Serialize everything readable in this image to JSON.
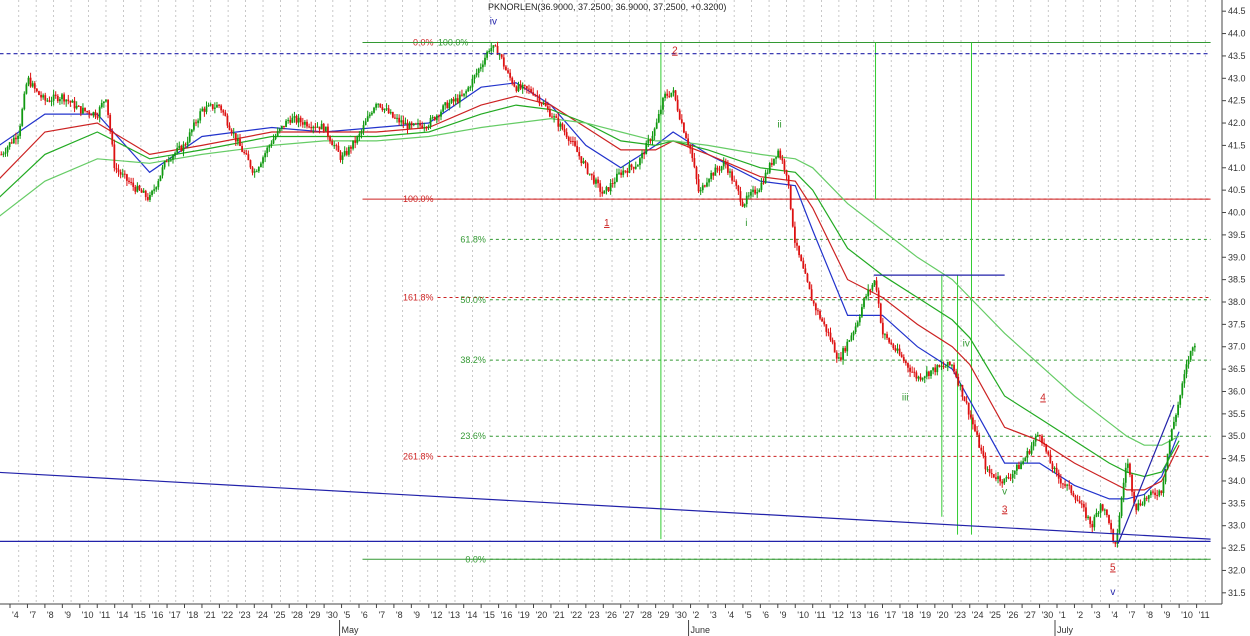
{
  "chart_data": {
    "type": "candlestick",
    "title": "PKNORLEN(36.9000, 37.2500, 36.9000, 37.2500, +0.3200)",
    "ylim": [
      31.25,
      44.75
    ],
    "y_ticks": [
      "31.5",
      "32.0",
      "32.5",
      "33.0",
      "33.5",
      "34.0",
      "34.5",
      "35.0",
      "35.5",
      "36.0",
      "36.5",
      "37.0",
      "37.5",
      "38.0",
      "38.5",
      "39.0",
      "39.5",
      "40.0",
      "40.5",
      "41.0",
      "41.5",
      "42.0",
      "42.5",
      "43.0",
      "43.5",
      "44.0",
      "44.5"
    ],
    "x_tick_labels": [
      "4",
      "7",
      "8",
      "9",
      "10",
      "11",
      "14",
      "15",
      "16",
      "17",
      "18",
      "21",
      "22",
      "23",
      "24",
      "25",
      "28",
      "29",
      "30",
      "5",
      "6",
      "7",
      "8",
      "9",
      "12",
      "13",
      "14",
      "15",
      "16",
      "19",
      "20",
      "21",
      "22",
      "23",
      "26",
      "27",
      "28",
      "29",
      "30",
      "2",
      "3",
      "4",
      "5",
      "6",
      "9",
      "10",
      "11",
      "12",
      "13",
      "16",
      "17",
      "18",
      "19",
      "20",
      "23",
      "24",
      "25",
      "26",
      "27",
      "30",
      "1",
      "2",
      "3",
      "4",
      "7",
      "8",
      "9",
      "10",
      "11"
    ],
    "month_labels": [
      {
        "label": "May",
        "tick_index": 19
      },
      {
        "label": "June",
        "tick_index": 39
      },
      {
        "label": "July",
        "tick_index": 60
      }
    ],
    "fib_levels": [
      {
        "label": "0.0%",
        "value": 43.8,
        "color": "#cc2222",
        "x_range": [
          24.5,
          68.8
        ]
      },
      {
        "label": "100.0%",
        "value": 43.8,
        "color": "#339933",
        "x_range": [
          26.5,
          68.8
        ]
      },
      {
        "label": "100.0%",
        "value": 40.3,
        "color": "#cc2222",
        "x_range": [
          24.5,
          68.8
        ]
      },
      {
        "label": "61.8%",
        "value": 39.4,
        "color": "#339933",
        "x_range": [
          27.5,
          68.8
        ]
      },
      {
        "label": "161.8%",
        "value": 38.1,
        "color": "#cc2222",
        "x_range": [
          24.5,
          68.8
        ]
      },
      {
        "label": "50.0%",
        "value": 38.05,
        "color": "#339933",
        "x_range": [
          27.5,
          68.8
        ]
      },
      {
        "label": "38.2%",
        "value": 36.7,
        "color": "#339933",
        "x_range": [
          27.5,
          68.8
        ]
      },
      {
        "label": "23.6%",
        "value": 35.0,
        "color": "#339933",
        "x_range": [
          27.5,
          68.8
        ]
      },
      {
        "label": "261.8%",
        "value": 34.55,
        "color": "#cc2222",
        "x_range": [
          24.5,
          68.8
        ]
      },
      {
        "label": "0.0%",
        "value": 32.25,
        "color": "#339933",
        "x_range": [
          27.5,
          68.8
        ]
      }
    ],
    "wave_labels": [
      {
        "text": "iv",
        "x": 27.7,
        "y": 44.2,
        "color": "#2222aa"
      },
      {
        "text": "2",
        "x": 38.1,
        "y": 43.55,
        "color": "#cc2222"
      },
      {
        "text": "1",
        "x": 34.2,
        "y": 39.7,
        "color": "#cc2222"
      },
      {
        "text": "ii",
        "x": 44.1,
        "y": 41.9,
        "color": "#339933"
      },
      {
        "text": "i",
        "x": 42.2,
        "y": 39.7,
        "color": "#339933"
      },
      {
        "text": "iii",
        "x": 51.3,
        "y": 35.8,
        "color": "#339933"
      },
      {
        "text": "iv",
        "x": 54.8,
        "y": 37.0,
        "color": "#339933"
      },
      {
        "text": "v",
        "x": 57.0,
        "y": 33.7,
        "color": "#339933"
      },
      {
        "text": "3",
        "x": 57.0,
        "y": 33.3,
        "color": "#cc2222"
      },
      {
        "text": "4",
        "x": 59.2,
        "y": 35.8,
        "color": "#cc2222"
      },
      {
        "text": "5",
        "x": 63.2,
        "y": 32.0,
        "color": "#cc2222"
      },
      {
        "text": "v",
        "x": 63.2,
        "y": 31.45,
        "color": "#2222aa"
      }
    ],
    "trendlines": [
      {
        "points": [
          [
            -1,
            34.2
          ],
          [
            68.8,
            32.7
          ]
        ],
        "color": "#2222aa"
      },
      {
        "points": [
          [
            -1,
            32.65
          ],
          [
            68.8,
            32.65
          ]
        ],
        "color": "#2222aa"
      },
      {
        "points": [
          [
            -1,
            43.55
          ],
          [
            68.8,
            43.55
          ]
        ],
        "color": "#2222aa",
        "dashed": true
      },
      {
        "points": [
          [
            49.5,
            38.6
          ],
          [
            57.0,
            38.6
          ]
        ],
        "color": "#2222aa"
      },
      {
        "points": [
          [
            63.5,
            32.6
          ],
          [
            66.7,
            35.7
          ]
        ],
        "color": "#2222aa"
      }
    ],
    "vertical_lines": [
      {
        "x": 37.3,
        "y_range": [
          32.7,
          43.8
        ],
        "color": "#33cc33"
      },
      {
        "x": 49.6,
        "y_range": [
          40.3,
          43.8
        ],
        "color": "#33cc33"
      },
      {
        "x": 55.1,
        "y_range": [
          32.8,
          43.8
        ],
        "color": "#33cc33"
      },
      {
        "x": 53.4,
        "y_range": [
          33.2,
          38.6
        ],
        "color": "#33cc33"
      },
      {
        "x": 54.3,
        "y_range": [
          32.8,
          38.6
        ],
        "color": "#33cc33"
      }
    ],
    "price_path": [
      [
        -0.5,
        41.3
      ],
      [
        0.5,
        41.8
      ],
      [
        1.0,
        43.0
      ],
      [
        1.5,
        42.7
      ],
      [
        2.0,
        42.5
      ],
      [
        3.0,
        42.6
      ],
      [
        4.0,
        42.3
      ],
      [
        5.0,
        42.2
      ],
      [
        5.5,
        42.6
      ],
      [
        6.0,
        41.0
      ],
      [
        7.0,
        40.6
      ],
      [
        8.0,
        40.3
      ],
      [
        9.0,
        41.2
      ],
      [
        10.0,
        41.5
      ],
      [
        11.0,
        42.3
      ],
      [
        12.0,
        42.4
      ],
      [
        13.0,
        41.6
      ],
      [
        14.0,
        40.9
      ],
      [
        15.0,
        41.6
      ],
      [
        16.0,
        42.1
      ],
      [
        17.0,
        42.0
      ],
      [
        18.0,
        41.9
      ],
      [
        19.0,
        41.2
      ],
      [
        20.0,
        41.7
      ],
      [
        21.0,
        42.5
      ],
      [
        22.0,
        42.1
      ],
      [
        23.0,
        41.9
      ],
      [
        24.0,
        42.0
      ],
      [
        25.0,
        42.4
      ],
      [
        26.0,
        42.6
      ],
      [
        27.0,
        43.3
      ],
      [
        27.5,
        43.7
      ],
      [
        28.0,
        43.6
      ],
      [
        28.5,
        43.1
      ],
      [
        29.0,
        42.8
      ],
      [
        30.0,
        42.7
      ],
      [
        31.0,
        42.2
      ],
      [
        32.0,
        41.7
      ],
      [
        33.0,
        41.0
      ],
      [
        34.0,
        40.4
      ],
      [
        35.0,
        40.9
      ],
      [
        36.0,
        41.1
      ],
      [
        37.0,
        41.9
      ],
      [
        37.5,
        42.6
      ],
      [
        38.0,
        42.7
      ],
      [
        38.5,
        42.0
      ],
      [
        39.0,
        41.4
      ],
      [
        39.5,
        40.4
      ],
      [
        40.0,
        40.8
      ],
      [
        41.0,
        41.1
      ],
      [
        42.0,
        40.2
      ],
      [
        43.0,
        40.6
      ],
      [
        44.0,
        41.4
      ],
      [
        44.5,
        40.9
      ],
      [
        45.0,
        39.3
      ],
      [
        46.0,
        38.0
      ],
      [
        47.0,
        37.2
      ],
      [
        47.5,
        36.7
      ],
      [
        48.5,
        37.5
      ],
      [
        49.0,
        38.1
      ],
      [
        49.6,
        38.5
      ],
      [
        50.0,
        37.3
      ],
      [
        51.0,
        36.8
      ],
      [
        52.0,
        36.3
      ],
      [
        53.0,
        36.5
      ],
      [
        54.0,
        36.6
      ],
      [
        55.0,
        35.5
      ],
      [
        56.0,
        34.2
      ],
      [
        57.0,
        34.0
      ],
      [
        58.0,
        34.4
      ],
      [
        59.0,
        35.1
      ],
      [
        59.5,
        34.5
      ],
      [
        60.0,
        34.1
      ],
      [
        61.0,
        33.7
      ],
      [
        62.0,
        33.0
      ],
      [
        62.5,
        33.5
      ],
      [
        63.0,
        33.1
      ],
      [
        63.3,
        32.4
      ],
      [
        63.7,
        33.6
      ],
      [
        64.0,
        34.5
      ],
      [
        64.5,
        33.4
      ],
      [
        65.0,
        33.6
      ],
      [
        66.0,
        33.8
      ],
      [
        66.5,
        35.0
      ],
      [
        67.0,
        35.8
      ],
      [
        67.5,
        36.7
      ],
      [
        68.0,
        37.2
      ]
    ],
    "moving_averages": [
      {
        "color": "#2233cc",
        "points": [
          [
            -1,
            41.4
          ],
          [
            2,
            42.2
          ],
          [
            5,
            42.2
          ],
          [
            8,
            40.9
          ],
          [
            11,
            41.7
          ],
          [
            15,
            41.9
          ],
          [
            18,
            41.8
          ],
          [
            21,
            41.9
          ],
          [
            24,
            42.0
          ],
          [
            27,
            42.8
          ],
          [
            29,
            42.9
          ],
          [
            31,
            42.4
          ],
          [
            33,
            41.5
          ],
          [
            35,
            41.0
          ],
          [
            37,
            41.5
          ],
          [
            38,
            41.8
          ],
          [
            40,
            41.3
          ],
          [
            43,
            40.7
          ],
          [
            45,
            40.6
          ],
          [
            46,
            39.6
          ],
          [
            48,
            37.7
          ],
          [
            50,
            37.7
          ],
          [
            52,
            37.0
          ],
          [
            54,
            36.5
          ],
          [
            55,
            35.8
          ],
          [
            57,
            34.4
          ],
          [
            59,
            34.4
          ],
          [
            61,
            33.9
          ],
          [
            63,
            33.6
          ],
          [
            64,
            33.6
          ],
          [
            65,
            33.7
          ],
          [
            66,
            34.1
          ],
          [
            67,
            35.1
          ]
        ]
      },
      {
        "color": "#cc2222",
        "points": [
          [
            -1,
            40.6
          ],
          [
            2,
            41.8
          ],
          [
            5,
            42.0
          ],
          [
            8,
            41.3
          ],
          [
            11,
            41.5
          ],
          [
            15,
            41.8
          ],
          [
            18,
            41.8
          ],
          [
            21,
            41.8
          ],
          [
            24,
            41.9
          ],
          [
            27,
            42.4
          ],
          [
            29,
            42.6
          ],
          [
            31,
            42.4
          ],
          [
            33,
            41.9
          ],
          [
            35,
            41.4
          ],
          [
            37,
            41.4
          ],
          [
            38,
            41.6
          ],
          [
            40,
            41.3
          ],
          [
            43,
            40.8
          ],
          [
            45,
            40.7
          ],
          [
            46,
            40.1
          ],
          [
            48,
            38.5
          ],
          [
            50,
            38.1
          ],
          [
            52,
            37.5
          ],
          [
            54,
            37.0
          ],
          [
            55,
            36.6
          ],
          [
            57,
            35.2
          ],
          [
            59,
            34.9
          ],
          [
            61,
            34.4
          ],
          [
            63,
            34.0
          ],
          [
            64,
            33.8
          ],
          [
            65,
            33.8
          ],
          [
            66,
            34.0
          ],
          [
            67,
            34.8
          ]
        ]
      },
      {
        "color": "#22aa22",
        "points": [
          [
            -1,
            40.2
          ],
          [
            2,
            41.3
          ],
          [
            5,
            41.8
          ],
          [
            8,
            41.2
          ],
          [
            11,
            41.4
          ],
          [
            15,
            41.7
          ],
          [
            18,
            41.7
          ],
          [
            21,
            41.7
          ],
          [
            24,
            41.8
          ],
          [
            27,
            42.2
          ],
          [
            29,
            42.4
          ],
          [
            31,
            42.3
          ],
          [
            33,
            42.0
          ],
          [
            35,
            41.6
          ],
          [
            37,
            41.5
          ],
          [
            38,
            41.6
          ],
          [
            40,
            41.4
          ],
          [
            43,
            41.0
          ],
          [
            45,
            40.9
          ],
          [
            46,
            40.5
          ],
          [
            48,
            39.2
          ],
          [
            50,
            38.6
          ],
          [
            52,
            38.1
          ],
          [
            54,
            37.6
          ],
          [
            55,
            37.2
          ],
          [
            57,
            35.9
          ],
          [
            59,
            35.4
          ],
          [
            61,
            34.9
          ],
          [
            63,
            34.4
          ],
          [
            64,
            34.2
          ],
          [
            65,
            34.1
          ],
          [
            66,
            34.2
          ],
          [
            67,
            34.9
          ]
        ]
      },
      {
        "color": "#66cc66",
        "points": [
          [
            -1,
            39.8
          ],
          [
            2,
            40.7
          ],
          [
            5,
            41.2
          ],
          [
            8,
            41.1
          ],
          [
            11,
            41.3
          ],
          [
            15,
            41.5
          ],
          [
            18,
            41.6
          ],
          [
            21,
            41.6
          ],
          [
            24,
            41.7
          ],
          [
            27,
            41.9
          ],
          [
            29,
            42.0
          ],
          [
            31,
            42.1
          ],
          [
            33,
            42.0
          ],
          [
            35,
            41.8
          ],
          [
            37,
            41.6
          ],
          [
            38,
            41.6
          ],
          [
            40,
            41.5
          ],
          [
            43,
            41.3
          ],
          [
            45,
            41.2
          ],
          [
            46,
            41.0
          ],
          [
            48,
            40.2
          ],
          [
            50,
            39.6
          ],
          [
            52,
            39.0
          ],
          [
            54,
            38.5
          ],
          [
            55,
            38.1
          ],
          [
            57,
            37.3
          ],
          [
            59,
            36.6
          ],
          [
            61,
            35.9
          ],
          [
            63,
            35.3
          ],
          [
            64,
            35.0
          ],
          [
            65,
            34.8
          ],
          [
            66,
            34.8
          ],
          [
            67,
            35.0
          ]
        ]
      }
    ],
    "grid": true,
    "legend": "none"
  }
}
